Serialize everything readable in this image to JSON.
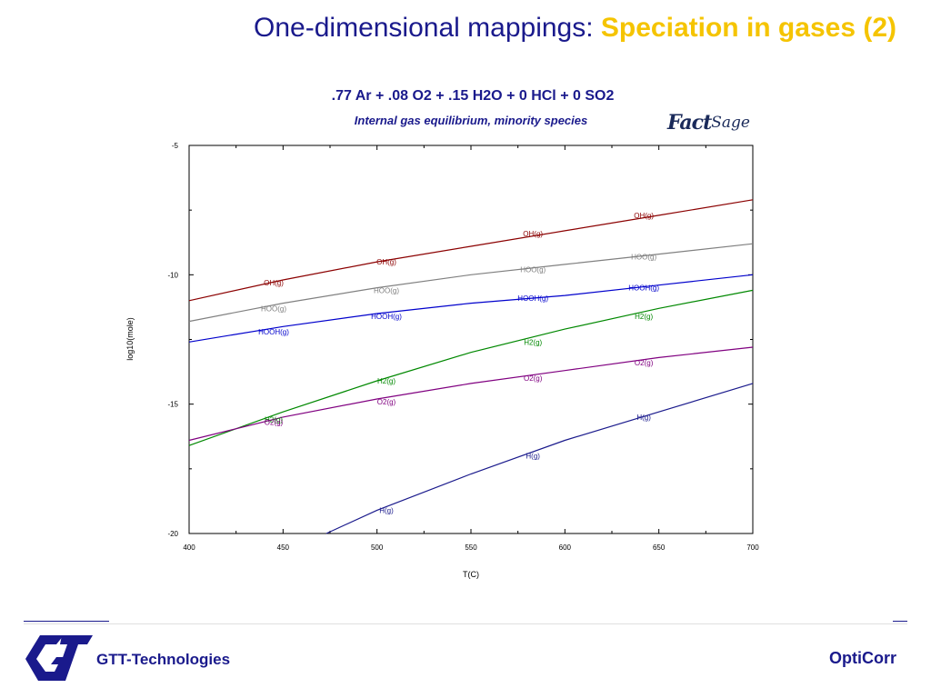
{
  "slide": {
    "title_main": "One-dimensional mappings: ",
    "title_accent": "Speciation in gases (2)"
  },
  "footer": {
    "company": "GTT-Technologies",
    "product": "OptiCorr"
  },
  "logo": {
    "fact": "Fact",
    "sage": "Sage"
  },
  "chart_data": {
    "type": "line",
    "title": ".77 Ar +  .08 O2 +  .15 H2O +  0 HCl + 0 SO2",
    "subtitle": "Internal gas equilibrium, minority species",
    "xlabel": "T(C)",
    "ylabel": "log10(mole)",
    "xlim": [
      400,
      700
    ],
    "ylim": [
      -20,
      -5
    ],
    "xticks": [
      400,
      450,
      500,
      550,
      600,
      650,
      700
    ],
    "yticks": [
      -5,
      -10,
      -15,
      -20
    ],
    "grid": false,
    "series": [
      {
        "name": "OH(g)",
        "color": "#8b0000",
        "x": [
          400,
          450,
          500,
          550,
          600,
          650,
          700
        ],
        "y": [
          -11.0,
          -10.2,
          -9.5,
          -8.9,
          -8.3,
          -7.7,
          -7.1
        ],
        "labels": [
          [
            445,
            -10.3
          ],
          [
            505,
            -9.5
          ],
          [
            583,
            -8.4
          ],
          [
            642,
            -7.7
          ]
        ]
      },
      {
        "name": "HOO(g)",
        "color": "#808080",
        "x": [
          400,
          450,
          500,
          550,
          600,
          650,
          700
        ],
        "y": [
          -11.8,
          -11.1,
          -10.5,
          -10.0,
          -9.6,
          -9.2,
          -8.8
        ],
        "labels": [
          [
            445,
            -11.3
          ],
          [
            505,
            -10.6
          ],
          [
            583,
            -9.8
          ],
          [
            642,
            -9.3
          ]
        ]
      },
      {
        "name": "HOOH(g)",
        "color": "#0000cc",
        "x": [
          400,
          450,
          500,
          550,
          600,
          650,
          700
        ],
        "y": [
          -12.6,
          -12.0,
          -11.5,
          -11.1,
          -10.8,
          -10.4,
          -10.0
        ],
        "labels": [
          [
            445,
            -12.2
          ],
          [
            505,
            -11.6
          ],
          [
            583,
            -10.9
          ],
          [
            642,
            -10.5
          ]
        ]
      },
      {
        "name": "H2(g)",
        "color": "#008800",
        "x": [
          400,
          450,
          500,
          550,
          600,
          650,
          700
        ],
        "y": [
          -16.6,
          -15.3,
          -14.1,
          -13.0,
          -12.1,
          -11.3,
          -10.6
        ],
        "labels": [
          [
            445,
            -15.6
          ],
          [
            505,
            -14.1
          ],
          [
            583,
            -12.6
          ],
          [
            642,
            -11.6
          ]
        ]
      },
      {
        "name": "O2(g)",
        "color": "#800080",
        "x": [
          400,
          450,
          500,
          550,
          600,
          650,
          700
        ],
        "y": [
          -16.4,
          -15.5,
          -14.8,
          -14.2,
          -13.7,
          -13.2,
          -12.8
        ],
        "labels": [
          [
            445,
            -15.7
          ],
          [
            505,
            -14.9
          ],
          [
            583,
            -14.0
          ],
          [
            642,
            -13.4
          ]
        ]
      },
      {
        "name": "H(g)",
        "color": "#1a1a8c",
        "x": [
          473,
          500,
          550,
          600,
          650,
          700
        ],
        "y": [
          -20.0,
          -19.1,
          -17.7,
          -16.4,
          -15.3,
          -14.2
        ],
        "labels": [
          [
            505,
            -19.1
          ],
          [
            583,
            -17.0
          ],
          [
            642,
            -15.5
          ]
        ]
      }
    ]
  }
}
